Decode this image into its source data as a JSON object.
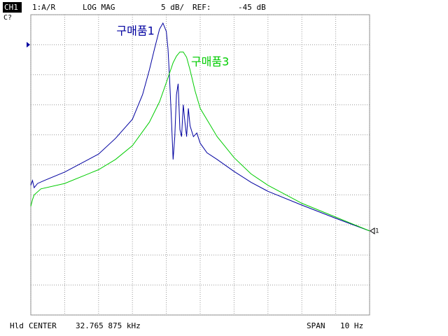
{
  "chart_data": {
    "type": "line",
    "channel": "CH1",
    "parameter": "1:A/R",
    "format": "LOG MAG",
    "scale": "5 dB/",
    "ref_caption": "REF:",
    "ref_level": {
      "value": -45,
      "label": "-45 dB"
    },
    "status": "C?",
    "hold": "Hld",
    "center_caption": "CENTER",
    "center": "32.765 875 kHz",
    "span_caption": "SPAN",
    "span": "10 Hz",
    "marker_label": "1",
    "xlim": [
      32.760875,
      32.770875
    ],
    "xticks": [
      32.760875,
      32.761875,
      32.762875,
      32.763875,
      32.764875,
      32.765875,
      32.766875,
      32.767875,
      32.768875,
      32.769875,
      32.770875
    ],
    "ylim": [
      -90,
      -40
    ],
    "yticks": [
      -90,
      -85,
      -80,
      -75,
      -70,
      -65,
      -60,
      -55,
      -50,
      -45,
      -40
    ],
    "grid": true,
    "series": [
      {
        "name": "구매품1",
        "color": "#0000a0",
        "x": [
          32.760875,
          32.760925,
          32.760975,
          32.761075,
          32.761275,
          32.761875,
          32.762875,
          32.763375,
          32.763875,
          32.764175,
          32.764375,
          32.764525,
          32.764675,
          32.764775,
          32.764875,
          32.764925,
          32.764975,
          32.765025,
          32.765075,
          32.765125,
          32.765175,
          32.765225,
          32.765275,
          32.765325,
          32.765375,
          32.765425,
          32.765475,
          32.765525,
          32.765575,
          32.765675,
          32.765775,
          32.765875,
          32.766075,
          32.766375,
          32.766875,
          32.767375,
          32.767875,
          32.768875,
          32.769875,
          32.770875
        ],
        "values": [
          -68.4,
          -67.6,
          -68.8,
          -68.1,
          -67.6,
          -66.2,
          -63.2,
          -60.6,
          -57.4,
          -53.3,
          -49.2,
          -45.7,
          -42.4,
          -41.4,
          -42.8,
          -45.7,
          -51.0,
          -57.4,
          -64.1,
          -60.3,
          -53.3,
          -51.5,
          -59.1,
          -60.3,
          -55.0,
          -57.9,
          -60.3,
          -55.6,
          -58.5,
          -60.3,
          -59.7,
          -61.4,
          -63.0,
          -64.1,
          -66.1,
          -67.9,
          -69.4,
          -71.7,
          -73.9,
          -76.0
        ]
      },
      {
        "name": "구매품3",
        "color": "#00cc00",
        "x": [
          32.760875,
          32.760925,
          32.760975,
          32.761175,
          32.761875,
          32.762875,
          32.763375,
          32.763875,
          32.764375,
          32.764675,
          32.764875,
          32.765075,
          32.765175,
          32.765275,
          32.765375,
          32.765475,
          32.765575,
          32.765725,
          32.765875,
          32.766375,
          32.766875,
          32.767375,
          32.767875,
          32.768875,
          32.769875,
          32.770875
        ],
        "values": [
          -71.9,
          -70.8,
          -70.0,
          -69.0,
          -68.1,
          -65.8,
          -64.1,
          -61.8,
          -57.9,
          -54.5,
          -51.3,
          -48.0,
          -46.9,
          -46.2,
          -46.2,
          -47.1,
          -49.2,
          -52.7,
          -55.6,
          -60.3,
          -63.8,
          -66.5,
          -68.4,
          -71.4,
          -73.7,
          -76.0
        ]
      }
    ]
  }
}
